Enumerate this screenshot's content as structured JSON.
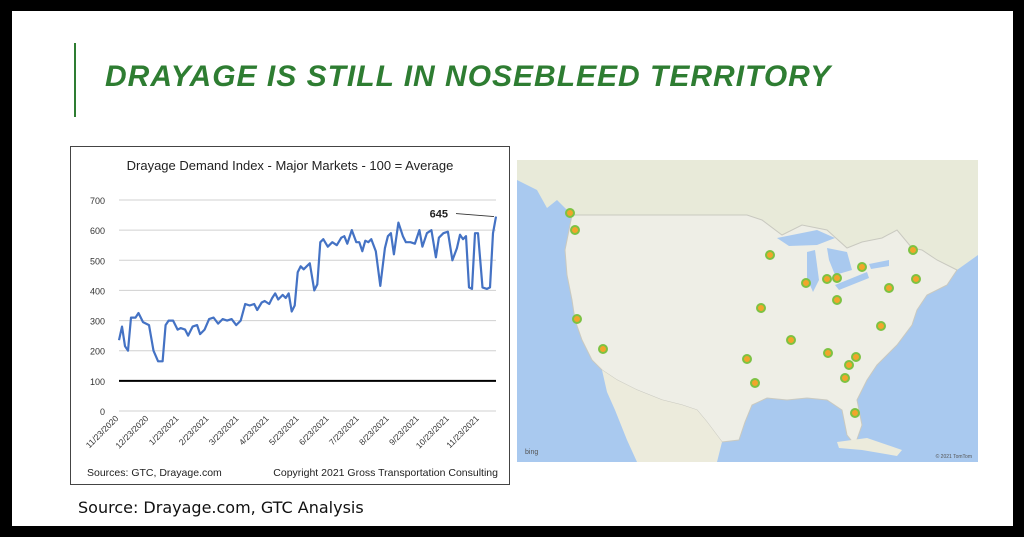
{
  "slide": {
    "title": "DRAYAGE IS STILL IN NOSEBLEED TERRITORY",
    "source_note": "Source: Drayage.com, GTC Analysis",
    "accent_color": "#2e7d32"
  },
  "chart_data": {
    "type": "line",
    "title": "Drayage Demand Index - Major Markets - 100 = Average",
    "xlabel": "",
    "ylabel": "",
    "ylim": [
      0,
      700
    ],
    "yticks": [
      0,
      100,
      200,
      300,
      400,
      500,
      600,
      700
    ],
    "xticks": [
      "11/23/2020",
      "12/23/2020",
      "1/23/2021",
      "2/23/2021",
      "3/23/2021",
      "4/23/2021",
      "5/23/2021",
      "6/23/2021",
      "7/23/2021",
      "8/23/2021",
      "9/23/2021",
      "10/23/2021",
      "11/23/2021"
    ],
    "grid": true,
    "line_color": "#4472c4",
    "reference_line": {
      "y": 100,
      "color": "#000000"
    },
    "annotation": {
      "text": "645",
      "x": 12.55,
      "y": 645
    },
    "series": [
      {
        "x": [
          0,
          0.1,
          0.2,
          0.3,
          0.4,
          0.55,
          0.65,
          0.8,
          1.0,
          1.15,
          1.3,
          1.45,
          1.55,
          1.65,
          1.8,
          1.95,
          2.05,
          2.2,
          2.3,
          2.45,
          2.6,
          2.7,
          2.85,
          3.0,
          3.15,
          3.3,
          3.45,
          3.6,
          3.75,
          3.9,
          4.05,
          4.2,
          4.35,
          4.5,
          4.6,
          4.75,
          4.85,
          5.0,
          5.1,
          5.2,
          5.3,
          5.45,
          5.55,
          5.65,
          5.75,
          5.85,
          5.95,
          6.05,
          6.15,
          6.25,
          6.35,
          6.5,
          6.6,
          6.7,
          6.8,
          6.95,
          7.1,
          7.25,
          7.4,
          7.5,
          7.6,
          7.75,
          7.9,
          8.0,
          8.1,
          8.2,
          8.3,
          8.4,
          8.55,
          8.7,
          8.85,
          8.95,
          9.05,
          9.15,
          9.3,
          9.45,
          9.55,
          9.7,
          9.85,
          10.0,
          10.1,
          10.25,
          10.4,
          10.55,
          10.65,
          10.8,
          10.95,
          11.1,
          11.25,
          11.35,
          11.45,
          11.55,
          11.65,
          11.75,
          11.85,
          11.95,
          12.1,
          12.25,
          12.35,
          12.45,
          12.55
        ],
        "values": [
          235,
          280,
          215,
          200,
          310,
          310,
          325,
          295,
          285,
          200,
          165,
          165,
          285,
          300,
          300,
          270,
          275,
          270,
          250,
          280,
          285,
          255,
          270,
          305,
          310,
          290,
          305,
          300,
          305,
          285,
          300,
          355,
          350,
          355,
          335,
          360,
          365,
          355,
          375,
          390,
          370,
          385,
          375,
          390,
          330,
          350,
          460,
          480,
          470,
          480,
          490,
          400,
          420,
          560,
          570,
          545,
          560,
          550,
          575,
          580,
          555,
          600,
          560,
          560,
          530,
          565,
          560,
          570,
          530,
          415,
          540,
          580,
          590,
          520,
          625,
          580,
          560,
          560,
          555,
          600,
          545,
          590,
          600,
          510,
          575,
          590,
          595,
          500,
          540,
          585,
          570,
          580,
          410,
          405,
          590,
          590,
          410,
          405,
          410,
          590,
          645
        ]
      }
    ],
    "footer_left": "Sources: GTC, Drayage.com",
    "footer_right": "Copyright 2021 Gross Transportation Consulting"
  },
  "map": {
    "bing_label": "bing",
    "copyright": "© 2021 TomTom",
    "marker_color": "#f2a52b",
    "marker_ring_color": "#7dc242"
  }
}
